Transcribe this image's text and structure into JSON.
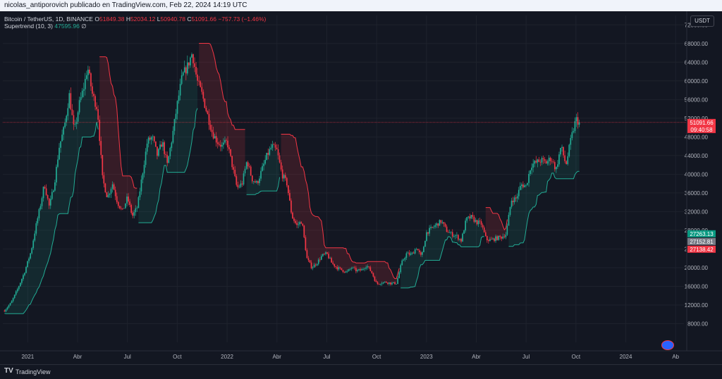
{
  "header": {
    "attribution": "nicolas_antiporovich publicado en TradingView.com, Feb 22, 2024 14:19 UTC"
  },
  "legend": {
    "symbol": "Bitcoin / TetherUS, 1D, BINANCE",
    "o_label": "O",
    "o_value": "51849.38",
    "h_label": "H",
    "h_value": "52034.12",
    "l_label": "L",
    "l_value": "50940.78",
    "c_label": "C",
    "c_value": "51091.66",
    "change": "−757.73 (−1.46%)",
    "indicator": "Supertrend (10, 3)",
    "indicator_value": "47595.96",
    "indicator_suffix": "∅"
  },
  "currency": "USDT",
  "footer": {
    "brand": "TradingView",
    "logo": "TV"
  },
  "colors": {
    "background": "#131722",
    "up": "#22ab94",
    "down": "#f23645",
    "grid": "#1e222d",
    "axis_text": "#b2b5be",
    "price_label_bg": "#f23645"
  },
  "chart_data": {
    "type": "candlestick",
    "ylim": [
      4000,
      74000
    ],
    "y_ticks": [
      8000,
      12000,
      16000,
      20000,
      24000,
      28000,
      32000,
      36000,
      40000,
      44000,
      48000,
      52000,
      56000,
      60000,
      64000,
      68000,
      72000
    ],
    "y_tick_labels": [
      "8000.00",
      "12000.00",
      "16000.00",
      "20000.00",
      "24000.00",
      "28000.00",
      "32000.00",
      "36000.00",
      "40000.00",
      "44000.00",
      "48000.00",
      "52000.00",
      "56000.00",
      "60000.00",
      "64000.00",
      "68000.00",
      "72000.00"
    ],
    "x_ticks": [
      {
        "label": "2021",
        "month": 0
      },
      {
        "label": "Abr",
        "month": 3
      },
      {
        "label": "Jul",
        "month": 6
      },
      {
        "label": "Oct",
        "month": 9
      },
      {
        "label": "2022",
        "month": 12
      },
      {
        "label": "Abr",
        "month": 15
      },
      {
        "label": "Jul",
        "month": 18
      },
      {
        "label": "Oct",
        "month": 21
      },
      {
        "label": "2023",
        "month": 24
      },
      {
        "label": "Abr",
        "month": 27
      },
      {
        "label": "Jul",
        "month": 30
      },
      {
        "label": "Oct",
        "month": 33
      },
      {
        "label": "2024",
        "month": 36
      },
      {
        "label": "Ab",
        "month": 39
      }
    ],
    "x_range_months": [
      -1.5,
      39.5
    ],
    "price_path": [
      [
        -1.4,
        10800
      ],
      [
        -1.0,
        12500
      ],
      [
        -0.6,
        15500
      ],
      [
        -0.2,
        19000
      ],
      [
        0.2,
        23500
      ],
      [
        0.5,
        29000
      ],
      [
        0.8,
        34000
      ],
      [
        1.0,
        38000
      ],
      [
        1.3,
        33000
      ],
      [
        1.6,
        38000
      ],
      [
        1.9,
        46000
      ],
      [
        2.2,
        50000
      ],
      [
        2.5,
        57000
      ],
      [
        2.8,
        49000
      ],
      [
        3.1,
        55000
      ],
      [
        3.4,
        59000
      ],
      [
        3.6,
        63000
      ],
      [
        3.9,
        57000
      ],
      [
        4.2,
        54000
      ],
      [
        4.5,
        39000
      ],
      [
        4.8,
        35000
      ],
      [
        5.1,
        38000
      ],
      [
        5.4,
        34000
      ],
      [
        5.7,
        32000
      ],
      [
        6.0,
        35000
      ],
      [
        6.3,
        31000
      ],
      [
        6.6,
        33000
      ],
      [
        6.9,
        40000
      ],
      [
        7.2,
        47000
      ],
      [
        7.5,
        48000
      ],
      [
        7.8,
        44000
      ],
      [
        8.1,
        47000
      ],
      [
        8.4,
        42000
      ],
      [
        8.7,
        48000
      ],
      [
        9.0,
        55000
      ],
      [
        9.3,
        61000
      ],
      [
        9.6,
        63000
      ],
      [
        9.9,
        66000
      ],
      [
        10.2,
        60000
      ],
      [
        10.5,
        57000
      ],
      [
        10.8,
        53000
      ],
      [
        11.1,
        49000
      ],
      [
        11.4,
        47000
      ],
      [
        11.7,
        46000
      ],
      [
        12.0,
        47000
      ],
      [
        12.3,
        42000
      ],
      [
        12.6,
        37000
      ],
      [
        12.9,
        38000
      ],
      [
        13.2,
        43000
      ],
      [
        13.5,
        39000
      ],
      [
        13.8,
        38000
      ],
      [
        14.1,
        41000
      ],
      [
        14.4,
        44000
      ],
      [
        14.7,
        46000
      ],
      [
        15.0,
        45000
      ],
      [
        15.3,
        40000
      ],
      [
        15.6,
        38000
      ],
      [
        15.9,
        31000
      ],
      [
        16.2,
        29000
      ],
      [
        16.5,
        30000
      ],
      [
        16.8,
        22000
      ],
      [
        17.1,
        20000
      ],
      [
        17.4,
        21000
      ],
      [
        17.7,
        22500
      ],
      [
        18.0,
        23000
      ],
      [
        18.3,
        21000
      ],
      [
        18.6,
        20000
      ],
      [
        18.9,
        19500
      ],
      [
        19.2,
        19000
      ],
      [
        19.5,
        20000
      ],
      [
        19.8,
        19300
      ],
      [
        20.1,
        19500
      ],
      [
        20.4,
        20500
      ],
      [
        20.7,
        19000
      ],
      [
        21.0,
        16500
      ],
      [
        21.3,
        16800
      ],
      [
        21.6,
        16900
      ],
      [
        21.9,
        16600
      ],
      [
        22.2,
        16700
      ],
      [
        22.5,
        21000
      ],
      [
        22.8,
        23000
      ],
      [
        23.1,
        22800
      ],
      [
        23.4,
        24300
      ],
      [
        23.7,
        22200
      ],
      [
        24.0,
        27500
      ],
      [
        24.3,
        28400
      ],
      [
        24.6,
        29200
      ],
      [
        24.9,
        30000
      ],
      [
        25.2,
        28000
      ],
      [
        25.5,
        27200
      ],
      [
        25.8,
        26800
      ],
      [
        26.1,
        25800
      ],
      [
        26.4,
        30400
      ],
      [
        26.7,
        30800
      ],
      [
        27.0,
        29800
      ],
      [
        27.3,
        29400
      ],
      [
        27.6,
        26000
      ],
      [
        27.9,
        25900
      ],
      [
        28.2,
        26300
      ],
      [
        28.5,
        26500
      ],
      [
        28.8,
        27200
      ],
      [
        29.1,
        34500
      ],
      [
        29.4,
        34800
      ],
      [
        29.7,
        37800
      ],
      [
        30.0,
        37500
      ],
      [
        30.3,
        42000
      ],
      [
        30.6,
        42500
      ],
      [
        30.9,
        43000
      ],
      [
        31.2,
        42500
      ],
      [
        31.5,
        43500
      ],
      [
        31.8,
        41000
      ],
      [
        32.1,
        46000
      ],
      [
        32.4,
        42000
      ],
      [
        32.7,
        47500
      ],
      [
        33.0,
        51800
      ],
      [
        33.2,
        51091
      ]
    ],
    "supertrend": [
      {
        "from": -1.5,
        "to": 4.3,
        "trend": "up",
        "level": "low"
      },
      {
        "from": 4.3,
        "to": 6.6,
        "trend": "down",
        "level": "high"
      },
      {
        "from": 6.6,
        "to": 10.3,
        "trend": "up",
        "level": "low"
      },
      {
        "from": 10.3,
        "to": 13.1,
        "trend": "down",
        "level": "high"
      },
      {
        "from": 13.1,
        "to": 15.2,
        "trend": "up",
        "level": "low"
      },
      {
        "from": 15.2,
        "to": 22.4,
        "trend": "down",
        "level": "high"
      },
      {
        "from": 22.4,
        "to": 27.5,
        "trend": "up",
        "level": "low"
      },
      {
        "from": 27.5,
        "to": 28.9,
        "trend": "down",
        "level": "high"
      },
      {
        "from": 28.9,
        "to": 33.3,
        "trend": "up",
        "level": "low"
      }
    ],
    "current_price": 51091.66,
    "price_labels": [
      {
        "price": 51091.66,
        "text": "51091.66",
        "sub": "09:40:58",
        "color": "#f23645"
      },
      {
        "price": 27263.13,
        "text": "27263.13",
        "color": "#089981"
      },
      {
        "price": 27152.81,
        "text": "27152.81",
        "color": "#787b86"
      },
      {
        "price": 27138.42,
        "text": "27138.42",
        "color": "#f23645"
      }
    ]
  }
}
